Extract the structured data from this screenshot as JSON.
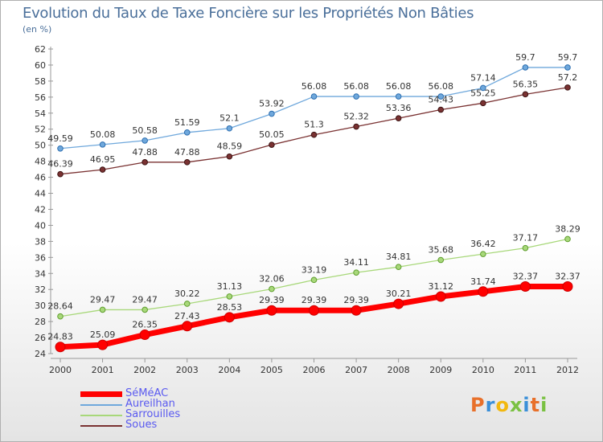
{
  "header": {
    "title": "Evolution du Taux de Taxe Foncière sur les Propriétés Non Bâties",
    "unit": "(en %)"
  },
  "logo": {
    "text": "Proxiti",
    "colors": [
      "#e8702a",
      "#3a8fd8",
      "#f2b80f",
      "#7ac142"
    ]
  },
  "chart_data": {
    "type": "line",
    "title": "Evolution du Taux de Taxe Foncière sur les Propriétés Non Bâties",
    "ylabel": "(en %)",
    "xlabel": "",
    "x": [
      2000,
      2001,
      2002,
      2003,
      2004,
      2005,
      2006,
      2007,
      2008,
      2009,
      2010,
      2011,
      2012
    ],
    "ylim": [
      24,
      62
    ],
    "ytick_step": 2,
    "grid": false,
    "legend_position": "bottom-left",
    "series": [
      {
        "name": "SéMéAC",
        "color": "#ff0000",
        "values": [
          24.83,
          25.09,
          26.35,
          27.43,
          28.53,
          29.39,
          29.39,
          29.39,
          30.21,
          31.12,
          31.74,
          32.37,
          32.37
        ]
      },
      {
        "name": "Aureilhan",
        "color": "#6fa8dc",
        "values": [
          49.59,
          50.08,
          50.58,
          51.59,
          52.1,
          53.92,
          56.08,
          56.08,
          56.08,
          56.08,
          57.14,
          59.7,
          59.7
        ]
      },
      {
        "name": "Sarrouilles",
        "color": "#a8d87a",
        "values": [
          28.64,
          29.47,
          29.47,
          30.22,
          31.13,
          32.06,
          33.19,
          34.11,
          34.81,
          35.68,
          36.42,
          37.17,
          38.29
        ]
      },
      {
        "name": "Soues",
        "color": "#7a3232",
        "values": [
          46.39,
          46.95,
          47.88,
          47.88,
          48.59,
          50.05,
          51.3,
          52.32,
          53.36,
          54.43,
          55.25,
          56.35,
          57.2
        ]
      }
    ]
  }
}
